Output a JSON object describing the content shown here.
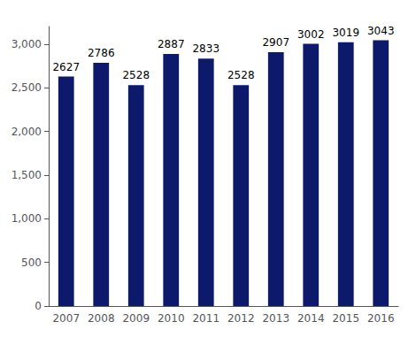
{
  "chart_data": {
    "type": "bar",
    "categories": [
      "2007",
      "2008",
      "2009",
      "2010",
      "2011",
      "2012",
      "2013",
      "2014",
      "2015",
      "2016"
    ],
    "values": [
      2627,
      2786,
      2528,
      2887,
      2833,
      2528,
      2907,
      3002,
      3019,
      3043
    ],
    "color": "#0D1A6B",
    "ylim": [
      0,
      3200
    ],
    "yticks": [
      0,
      500,
      1000,
      1500,
      2000,
      2500,
      3000
    ],
    "grid": false,
    "data_labels": true
  }
}
